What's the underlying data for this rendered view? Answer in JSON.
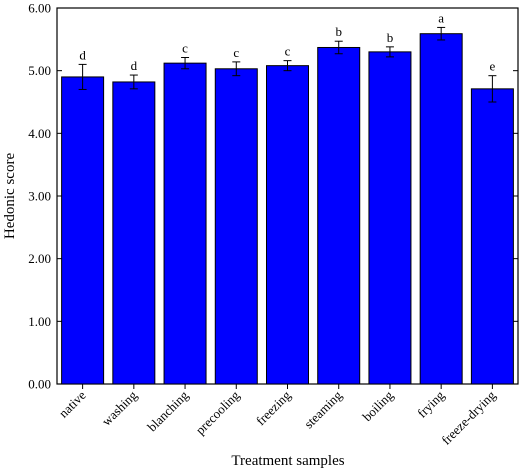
{
  "chart_data": {
    "type": "bar",
    "title": "",
    "xlabel": "Treatment samples",
    "ylabel": "Hedonic score",
    "ylim": [
      0,
      6
    ],
    "yticks": [
      "0.00",
      "1.00",
      "2.00",
      "3.00",
      "4.00",
      "5.00",
      "6.00"
    ],
    "grid": false,
    "legend": "none",
    "bar_color": "#0000ff",
    "edge_color": "#000000",
    "categories": [
      "native",
      "washing",
      "blanching",
      "precooling",
      "freezing",
      "steaming",
      "boiling",
      "frying",
      "freeze-drying"
    ],
    "values": [
      4.9,
      4.82,
      5.12,
      5.03,
      5.08,
      5.37,
      5.3,
      5.59,
      4.71
    ],
    "errors": [
      0.2,
      0.11,
      0.09,
      0.11,
      0.08,
      0.1,
      0.08,
      0.1,
      0.21
    ],
    "significance": [
      "d",
      "d",
      "c",
      "c",
      "c",
      "b",
      "b",
      "a",
      "e"
    ]
  }
}
